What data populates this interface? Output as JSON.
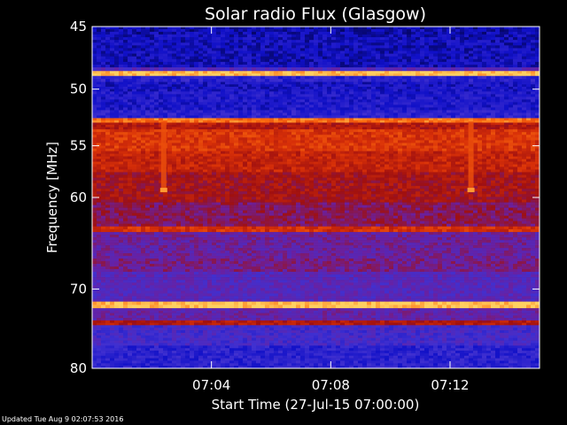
{
  "chart_data": {
    "type": "heatmap",
    "title": "Solar radio Flux (Glasgow)",
    "xlabel": "Start Time (27-Jul-15 07:00:00)",
    "ylabel": "Frequency [MHz]",
    "x_range_minutes": [
      0,
      15
    ],
    "x_ticks": [
      {
        "value": 4,
        "label": "07:04"
      },
      {
        "value": 8,
        "label": "07:08"
      },
      {
        "value": 12,
        "label": "07:12"
      }
    ],
    "y_range_mhz": [
      45,
      80
    ],
    "y_log_scale": true,
    "y_ticks": [
      {
        "value": 45,
        "label": "45"
      },
      {
        "value": 50,
        "label": "50"
      },
      {
        "value": 55,
        "label": "55"
      },
      {
        "value": 60,
        "label": "60"
      },
      {
        "value": 70,
        "label": "70"
      },
      {
        "value": 80,
        "label": "80"
      }
    ],
    "colormap": [
      "#000033",
      "#1010c8",
      "#4030d0",
      "#6a20a0",
      "#a01010",
      "#d83008",
      "#ff7010",
      "#ffd060"
    ],
    "frequency_bands": [
      {
        "from": 45.0,
        "to": 45.6,
        "level": 0.12
      },
      {
        "from": 45.6,
        "to": 48.2,
        "level": 0.14
      },
      {
        "from": 48.2,
        "to": 48.5,
        "level": 0.35
      },
      {
        "from": 48.5,
        "to": 48.9,
        "level": 0.98
      },
      {
        "from": 48.9,
        "to": 49.4,
        "level": 0.22
      },
      {
        "from": 49.4,
        "to": 50.2,
        "level": 0.16
      },
      {
        "from": 50.2,
        "to": 51.8,
        "level": 0.18
      },
      {
        "from": 51.8,
        "to": 52.5,
        "level": 0.22
      },
      {
        "from": 52.5,
        "to": 52.9,
        "level": 0.85
      },
      {
        "from": 52.9,
        "to": 53.5,
        "level": 0.62
      },
      {
        "from": 53.5,
        "to": 55.5,
        "level": 0.72
      },
      {
        "from": 55.5,
        "to": 57.5,
        "level": 0.66
      },
      {
        "from": 57.5,
        "to": 60.5,
        "level": 0.58
      },
      {
        "from": 60.5,
        "to": 63.0,
        "level": 0.5
      },
      {
        "from": 63.0,
        "to": 63.6,
        "level": 0.7
      },
      {
        "from": 63.6,
        "to": 66.5,
        "level": 0.42
      },
      {
        "from": 66.5,
        "to": 68.0,
        "level": 0.45
      },
      {
        "from": 68.0,
        "to": 71.5,
        "level": 0.36
      },
      {
        "from": 71.5,
        "to": 72.3,
        "level": 0.98
      },
      {
        "from": 72.3,
        "to": 73.8,
        "level": 0.4
      },
      {
        "from": 73.8,
        "to": 74.4,
        "level": 0.62
      },
      {
        "from": 74.4,
        "to": 77.0,
        "level": 0.3
      },
      {
        "from": 77.0,
        "to": 80.0,
        "level": 0.22
      }
    ],
    "interference_columns": [
      {
        "time_min": 2.4,
        "freq_from": 52.8,
        "freq_to": 59.3
      },
      {
        "time_min": 12.7,
        "freq_from": 52.8,
        "freq_to": 59.3
      }
    ]
  },
  "footer": {
    "text": "Updated Tue Aug  9 02:07:53 2016"
  }
}
